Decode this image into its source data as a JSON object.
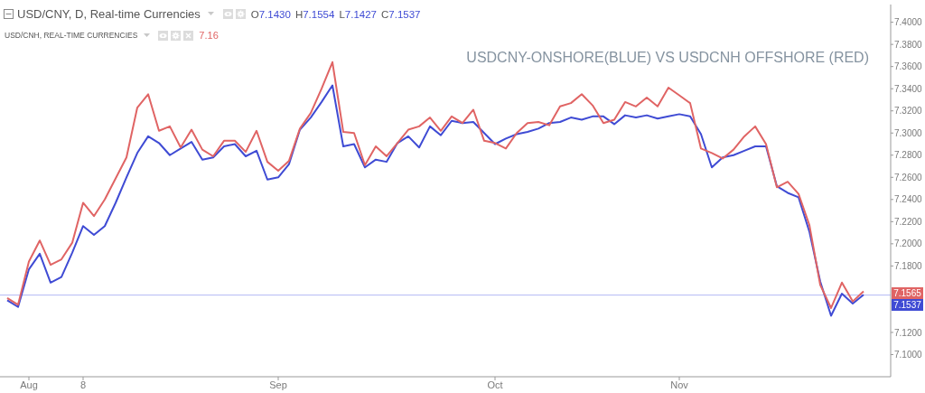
{
  "chart_data": {
    "type": "line",
    "title": "USDCNY-ONSHORE(BLUE) VS USDCNH OFFSHORE (RED)",
    "categories": [
      null,
      null,
      "Aug",
      null,
      null,
      null,
      null,
      "8",
      null,
      null,
      null,
      null,
      null,
      null,
      null,
      null,
      null,
      null,
      null,
      null,
      null,
      null,
      null,
      null,
      null,
      "Sep",
      null,
      null,
      null,
      null,
      null,
      null,
      null,
      null,
      null,
      null,
      null,
      null,
      null,
      null,
      null,
      null,
      null,
      null,
      null,
      "Oct",
      null,
      null,
      null,
      null,
      null,
      null,
      null,
      null,
      null,
      null,
      null,
      null,
      null,
      null,
      null,
      null,
      "Nov",
      null,
      null,
      null,
      null,
      null,
      null,
      null,
      null,
      null,
      null,
      null,
      null,
      null,
      null,
      null,
      null,
      null
    ],
    "series": [
      {
        "color": "#3f4bd4",
        "values": [
          7.149,
          7.143,
          7.177,
          7.191,
          7.165,
          7.17,
          7.192,
          7.216,
          7.208,
          7.216,
          7.237,
          7.26,
          7.282,
          7.297,
          7.291,
          7.28,
          7.286,
          7.292,
          7.276,
          7.278,
          7.288,
          7.29,
          7.279,
          7.284,
          7.258,
          7.26,
          7.272,
          7.303,
          7.314,
          7.328,
          7.343,
          7.288,
          7.29,
          7.269,
          7.276,
          7.274,
          7.291,
          7.297,
          7.287,
          7.306,
          7.298,
          7.311,
          7.309,
          7.31,
          7.3,
          7.29,
          7.295,
          7.299,
          7.301,
          7.304,
          7.309,
          7.31,
          7.314,
          7.312,
          7.315,
          7.315,
          7.308,
          7.316,
          7.314,
          7.316,
          7.313,
          7.315,
          7.317,
          7.315,
          7.299,
          7.269,
          7.278,
          7.28,
          7.284,
          7.288,
          7.288,
          7.252,
          7.246,
          7.242,
          7.211,
          7.166,
          7.135,
          7.155,
          7.146,
          7.154
        ]
      },
      {
        "color": "#e06464",
        "values": [
          7.151,
          7.145,
          7.184,
          7.203,
          7.181,
          7.186,
          7.201,
          7.237,
          7.225,
          7.24,
          7.259,
          7.278,
          7.323,
          7.335,
          7.302,
          7.306,
          7.287,
          7.303,
          7.285,
          7.279,
          7.293,
          7.293,
          7.283,
          7.302,
          7.274,
          7.266,
          7.275,
          7.304,
          7.318,
          7.34,
          7.364,
          7.301,
          7.3,
          7.271,
          7.288,
          7.279,
          7.291,
          7.303,
          7.306,
          7.314,
          7.302,
          7.315,
          7.309,
          7.321,
          7.293,
          7.291,
          7.286,
          7.3,
          7.309,
          7.31,
          7.307,
          7.324,
          7.327,
          7.335,
          7.325,
          7.309,
          7.312,
          7.328,
          7.324,
          7.332,
          7.324,
          7.341,
          7.334,
          7.327,
          7.286,
          7.282,
          7.277,
          7.285,
          7.297,
          7.306,
          7.29,
          7.251,
          7.256,
          7.245,
          7.217,
          7.163,
          7.142,
          7.165,
          7.148,
          7.157
        ]
      }
    ],
    "ylim": [
      7.08,
      7.416
    ],
    "yticks": [
      {
        "value": 7.1,
        "label": "7.1000"
      },
      {
        "value": 7.12,
        "label": "7.1200"
      },
      {
        "value": 7.18,
        "label": "7.1800"
      },
      {
        "value": 7.2,
        "label": "7.2000"
      },
      {
        "value": 7.22,
        "label": "7.2200"
      },
      {
        "value": 7.24,
        "label": "7.2400"
      },
      {
        "value": 7.26,
        "label": "7.2600"
      },
      {
        "value": 7.28,
        "label": "7.2800"
      },
      {
        "value": 7.3,
        "label": "7.3000"
      },
      {
        "value": 7.32,
        "label": "7.3200"
      },
      {
        "value": 7.34,
        "label": "7.3400"
      },
      {
        "value": 7.36,
        "label": "7.3600"
      },
      {
        "value": 7.38,
        "label": "7.3800"
      },
      {
        "value": 7.4,
        "label": "7.4000"
      }
    ],
    "ref_lines": [
      {
        "axis": "y",
        "value": 7.1537,
        "label": "7.1537",
        "color": "#b3b8f4"
      }
    ],
    "annotations": [
      "USD/CNY, D, Real-time Currencies",
      "O7.1430",
      "H7.1554",
      "L7.1427",
      "C7.1537",
      "USD/CNH, REAL-TIME CURRENCIES",
      "7.16",
      "7.1565"
    ]
  }
}
